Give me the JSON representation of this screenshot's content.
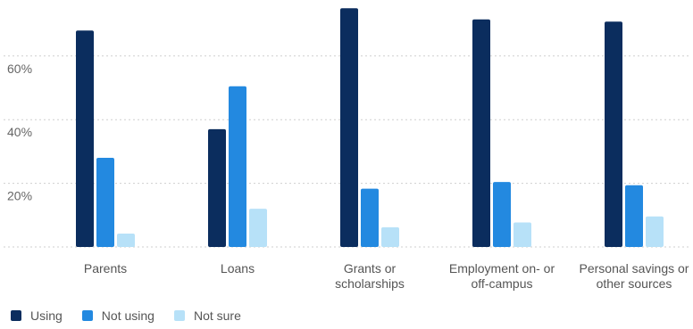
{
  "chart_data": {
    "type": "bar",
    "title": "",
    "xlabel": "",
    "ylabel": "",
    "ylim": [
      0,
      76
    ],
    "yticks": [
      20,
      40,
      60
    ],
    "ytick_labels": [
      "20%",
      "40%",
      "60%"
    ],
    "categories": [
      [
        "Parents"
      ],
      [
        "Loans"
      ],
      [
        "Grants or",
        "scholarships"
      ],
      [
        "Employment on- or",
        "off-campus"
      ],
      [
        "Personal savings or",
        "other sources"
      ]
    ],
    "series": [
      {
        "name": "Using",
        "color": "#0b2d5e",
        "values": [
          68,
          37,
          75,
          71.5,
          70.8
        ]
      },
      {
        "name": "Not using",
        "color": "#2389e0",
        "values": [
          28,
          50.5,
          18.3,
          20.4,
          19.4
        ]
      },
      {
        "name": "Not sure",
        "color": "#b7e1f8",
        "values": [
          4.2,
          12,
          6.2,
          7.7,
          9.6
        ]
      }
    ],
    "grid": true,
    "legend_position": "bottom-left"
  }
}
